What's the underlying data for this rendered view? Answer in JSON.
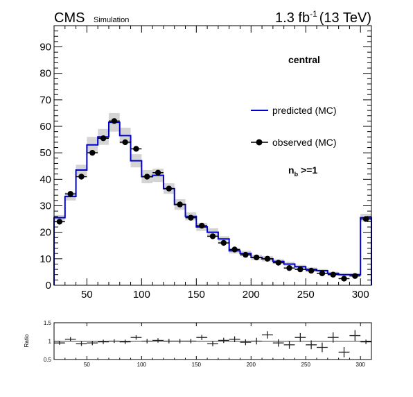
{
  "header": {
    "experiment": "CMS",
    "tag": "Simulation",
    "lumi_value": "1.3 fb",
    "lumi_exp": "-1",
    "energy": "(13 TeV)"
  },
  "annotations": {
    "region": "central",
    "nb_main": "n",
    "nb_sub": "b",
    "nb_cond": ">=1"
  },
  "colors": {
    "predicted": "#0000cc",
    "observed": "#000000",
    "band": "#d4d4d4",
    "ratio_line": "#cc0000"
  },
  "chart_data": [
    {
      "type": "line",
      "style": "histogram",
      "xlim": [
        20,
        310
      ],
      "ylim": [
        0,
        98
      ],
      "x_ticks": [
        50,
        100,
        150,
        200,
        250,
        300
      ],
      "y_ticks": [
        0,
        10,
        20,
        30,
        40,
        50,
        60,
        70,
        80,
        90
      ],
      "legend": {
        "placement": "top-right",
        "entries": [
          "predicted (MC)",
          "observed  (MC)"
        ]
      },
      "bin_edges": [
        20,
        30,
        40,
        50,
        60,
        70,
        80,
        90,
        100,
        110,
        120,
        130,
        140,
        150,
        160,
        170,
        180,
        190,
        200,
        210,
        220,
        230,
        240,
        250,
        260,
        270,
        280,
        290,
        300,
        310
      ],
      "series": [
        {
          "name": "predicted (MC)",
          "values": [
            25.5,
            33.5,
            43.5,
            53.0,
            56.0,
            61.5,
            56.5,
            47.0,
            41.0,
            41.5,
            36.5,
            30.5,
            26.0,
            22.0,
            20.0,
            17.5,
            13.0,
            12.0,
            10.5,
            10.0,
            9.0,
            8.0,
            7.0,
            6.0,
            5.5,
            4.5,
            4.0,
            4.0,
            25.5
          ],
          "band": [
            1.0,
            1.5,
            2.0,
            3.0,
            3.0,
            3.5,
            3.0,
            2.5,
            2.5,
            2.5,
            2.0,
            2.0,
            1.5,
            1.5,
            1.5,
            1.0,
            1.0,
            1.0,
            1.0,
            1.0,
            0.8,
            0.8,
            0.7,
            0.7,
            0.6,
            0.6,
            0.5,
            0.5,
            1.5
          ]
        },
        {
          "name": "observed  (MC)",
          "values": [
            24.0,
            34.5,
            41.0,
            50.0,
            55.5,
            62.0,
            54.0,
            51.5,
            41.0,
            42.5,
            36.5,
            30.5,
            25.5,
            22.5,
            18.5,
            16.0,
            13.5,
            11.5,
            10.5,
            10.0,
            8.5,
            6.5,
            6.0,
            5.5,
            4.5,
            4.0,
            2.5,
            3.5,
            25.0
          ]
        }
      ]
    },
    {
      "type": "scatter",
      "ylabel": "Ratio",
      "xlim": [
        20,
        310
      ],
      "ylim": [
        0.5,
        1.5
      ],
      "x_ticks": [
        50,
        100,
        150,
        200,
        250,
        300
      ],
      "y_ticks": [
        0.5,
        1,
        1.5
      ],
      "reference_line": 1,
      "x": [
        25,
        35,
        45,
        55,
        65,
        75,
        85,
        95,
        105,
        115,
        125,
        135,
        145,
        155,
        165,
        175,
        185,
        195,
        205,
        215,
        225,
        235,
        245,
        255,
        265,
        275,
        285,
        295,
        305
      ],
      "values": [
        0.95,
        1.05,
        0.93,
        0.95,
        0.98,
        1.0,
        0.98,
        1.1,
        1.0,
        1.02,
        1.0,
        1.0,
        1.0,
        1.1,
        0.93,
        1.02,
        1.05,
        0.97,
        1.0,
        1.17,
        0.95,
        0.9,
        1.1,
        0.9,
        0.83,
        1.1,
        0.7,
        1.15,
        0.98
      ],
      "errors": [
        0.05,
        0.06,
        0.06,
        0.06,
        0.06,
        0.05,
        0.06,
        0.06,
        0.06,
        0.06,
        0.06,
        0.06,
        0.06,
        0.07,
        0.07,
        0.07,
        0.08,
        0.08,
        0.09,
        0.1,
        0.1,
        0.11,
        0.12,
        0.12,
        0.13,
        0.14,
        0.14,
        0.15,
        0.06
      ]
    }
  ]
}
